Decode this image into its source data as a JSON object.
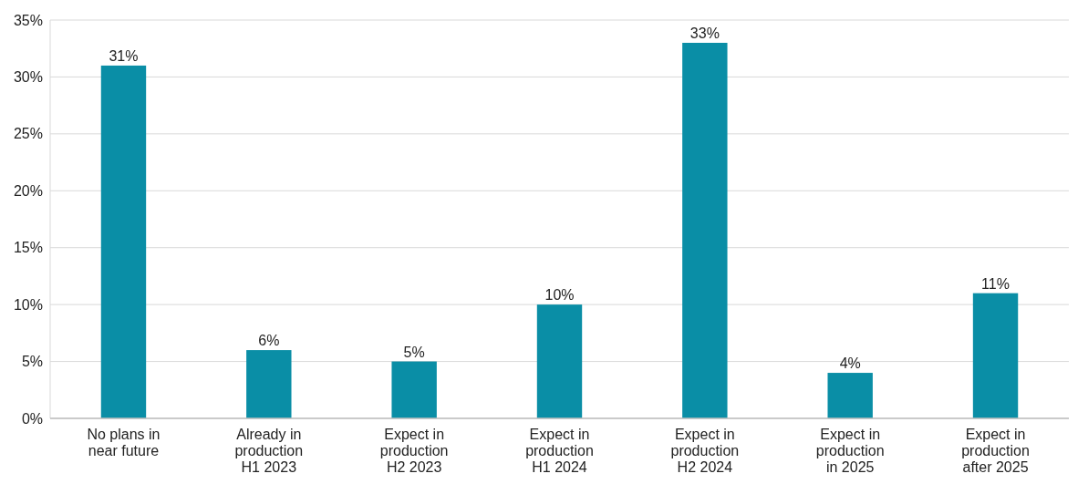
{
  "chart_data": {
    "type": "bar",
    "categories": [
      "No plans in near future",
      "Already in production H1 2023",
      "Expect in production H2 2023",
      "Expect in production H1 2024",
      "Expect in production H2 2024",
      "Expect in production in 2025",
      "Expect in production after 2025"
    ],
    "values": [
      31,
      6,
      5,
      10,
      33,
      4,
      11
    ],
    "value_labels": [
      "31%",
      "6%",
      "5%",
      "10%",
      "33%",
      "4%",
      "11%"
    ],
    "color": "#0a8ea6",
    "ylim": [
      0,
      35
    ],
    "yticks": [
      {
        "value": 0,
        "label": "0%"
      },
      {
        "value": 5,
        "label": "5%"
      },
      {
        "value": 10,
        "label": "10%"
      },
      {
        "value": 15,
        "label": "15%"
      },
      {
        "value": 20,
        "label": "20%"
      },
      {
        "value": 25,
        "label": "25%"
      },
      {
        "value": 30,
        "label": "30%"
      },
      {
        "value": 35,
        "label": "35%"
      }
    ],
    "grid": "y"
  }
}
